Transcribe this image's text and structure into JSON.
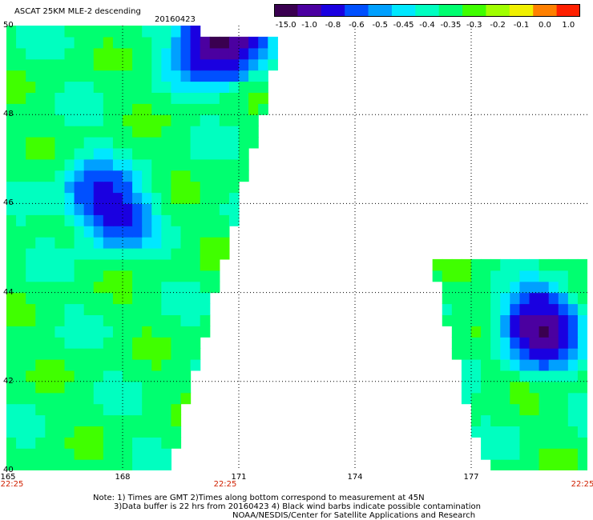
{
  "header": {
    "title": "ASCAT 25KM MLE-2 descending",
    "date": "20160423"
  },
  "colorbar": {
    "labels": [
      "-15.0",
      "-1.0",
      "-0.8",
      "-0.6",
      "-0.5",
      "-0.45",
      "-0.4",
      "-0.35",
      "-0.3",
      "-0.2",
      "-0.1",
      "0.0",
      "1.0"
    ],
    "colors": [
      "#3a0050",
      "#4b00a0",
      "#1a00e0",
      "#0050ff",
      "#00a0ff",
      "#00e8ff",
      "#00ffc0",
      "#00ff70",
      "#40ff00",
      "#a0ff00",
      "#f0f000",
      "#ff8000",
      "#ff2000"
    ]
  },
  "chart_data": {
    "type": "heatmap",
    "title": "ASCAT 25KM MLE-2 descending",
    "subtitle": "20160423",
    "x_ticks": [
      165,
      168,
      171,
      174,
      177
    ],
    "y_ticks": [
      40,
      42,
      44,
      46,
      48,
      50
    ],
    "xlim": [
      165,
      180
    ],
    "ylim": [
      40,
      50
    ],
    "time_labels": [
      "22:25",
      "22:25",
      "22:25"
    ],
    "grid": true,
    "value_scale": [
      -15.0,
      -1.0,
      -0.8,
      -0.6,
      -0.5,
      -0.45,
      -0.4,
      -0.35,
      -0.3,
      -0.2,
      -0.1,
      0.0,
      1.0
    ],
    "dominant_value": -0.33,
    "low_regions": [
      {
        "lon": 167.9,
        "lat": 45.7,
        "min_value": -0.6
      },
      {
        "lon": 167.2,
        "lat": 46.3,
        "min_value": -0.55
      },
      {
        "lon": 170.6,
        "lat": 49.7,
        "min_value": -1.0
      },
      {
        "lon": 178.8,
        "lat": 43.2,
        "min_value": -1.0
      }
    ]
  },
  "footer": {
    "line1": "Note: 1) Times are GMT 2)Times along bottom correspond to measurement at 45N",
    "line2": "3)Data buffer is 22 hrs from 20160423 4) Black wind barbs indicate possible contamination",
    "line3": "NOAA/NESDIS/Center for Satellite Applications and Research"
  }
}
